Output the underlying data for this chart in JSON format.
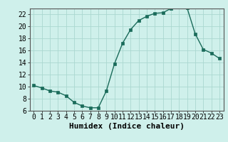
{
  "x": [
    0,
    1,
    2,
    3,
    4,
    5,
    6,
    7,
    8,
    9,
    10,
    11,
    12,
    13,
    14,
    15,
    16,
    17,
    18,
    19,
    20,
    21,
    22,
    23
  ],
  "y": [
    10.2,
    9.8,
    9.3,
    9.1,
    8.5,
    7.4,
    6.8,
    6.5,
    6.5,
    9.3,
    13.8,
    17.2,
    19.5,
    21.0,
    21.7,
    22.2,
    22.3,
    23.0,
    23.2,
    23.1,
    18.8,
    16.2,
    15.6,
    14.7
  ],
  "title": "",
  "xlabel": "Humidex (Indice chaleur)",
  "ylabel": "",
  "xlim": [
    -0.5,
    23.5
  ],
  "ylim": [
    6,
    23
  ],
  "yticks": [
    6,
    8,
    10,
    12,
    14,
    16,
    18,
    20,
    22
  ],
  "xticks": [
    0,
    1,
    2,
    3,
    4,
    5,
    6,
    7,
    8,
    9,
    10,
    11,
    12,
    13,
    14,
    15,
    16,
    17,
    18,
    19,
    20,
    21,
    22,
    23
  ],
  "line_color": "#1a6b5a",
  "marker": "s",
  "marker_size": 2.5,
  "bg_color": "#cff0eb",
  "grid_color": "#aad8d0",
  "xlabel_fontsize": 8,
  "tick_fontsize": 7
}
